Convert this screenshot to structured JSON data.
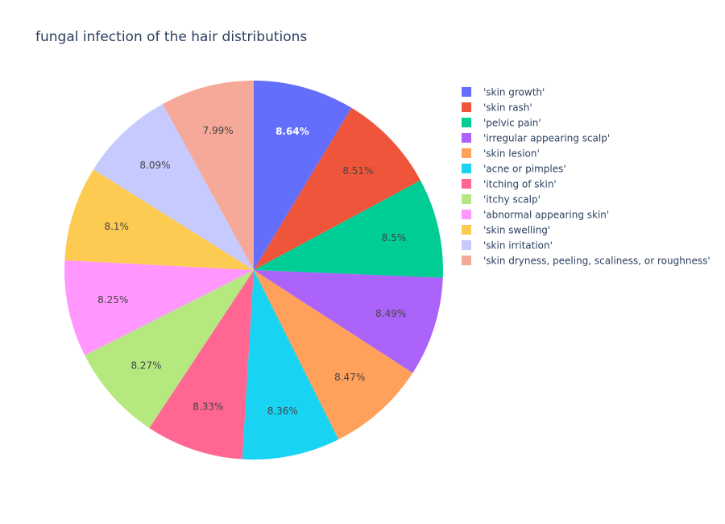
{
  "chart_data": {
    "type": "pie",
    "title": "fungal infection of the hair distributions",
    "legend_position": "right",
    "direction": "clockwise",
    "start_angle": "top",
    "slices": [
      {
        "label": "'skin growth'",
        "value": 8.64,
        "text": "8.64%",
        "color": "#636efa"
      },
      {
        "label": "'skin rash'",
        "value": 8.51,
        "text": "8.51%",
        "color": "#EF553B"
      },
      {
        "label": "'pelvic pain'",
        "value": 8.5,
        "text": "8.5%",
        "color": "#00cc96"
      },
      {
        "label": "'irregular appearing scalp'",
        "value": 8.49,
        "text": "8.49%",
        "color": "#ab63fa"
      },
      {
        "label": "'skin lesion'",
        "value": 8.47,
        "text": "8.47%",
        "color": "#FFA15A"
      },
      {
        "label": "'acne or pimples'",
        "value": 8.36,
        "text": "8.36%",
        "color": "#19d3f3"
      },
      {
        "label": "'itching of skin'",
        "value": 8.33,
        "text": "8.33%",
        "color": "#FF6692"
      },
      {
        "label": "'itchy scalp'",
        "value": 8.27,
        "text": "8.27%",
        "color": "#B6E880"
      },
      {
        "label": "'abnormal appearing skin'",
        "value": 8.25,
        "text": "8.25%",
        "color": "#FF97FF"
      },
      {
        "label": "'skin swelling'",
        "value": 8.1,
        "text": "8.1%",
        "color": "#FECB52"
      },
      {
        "label": "'skin irritation'",
        "value": 8.09,
        "text": "8.09%",
        "color": "#c6caff"
      },
      {
        "label": "'skin dryness, peeling, scaliness, or roughness'",
        "value": 7.99,
        "text": "7.99%",
        "color": "#f6a899"
      }
    ]
  }
}
